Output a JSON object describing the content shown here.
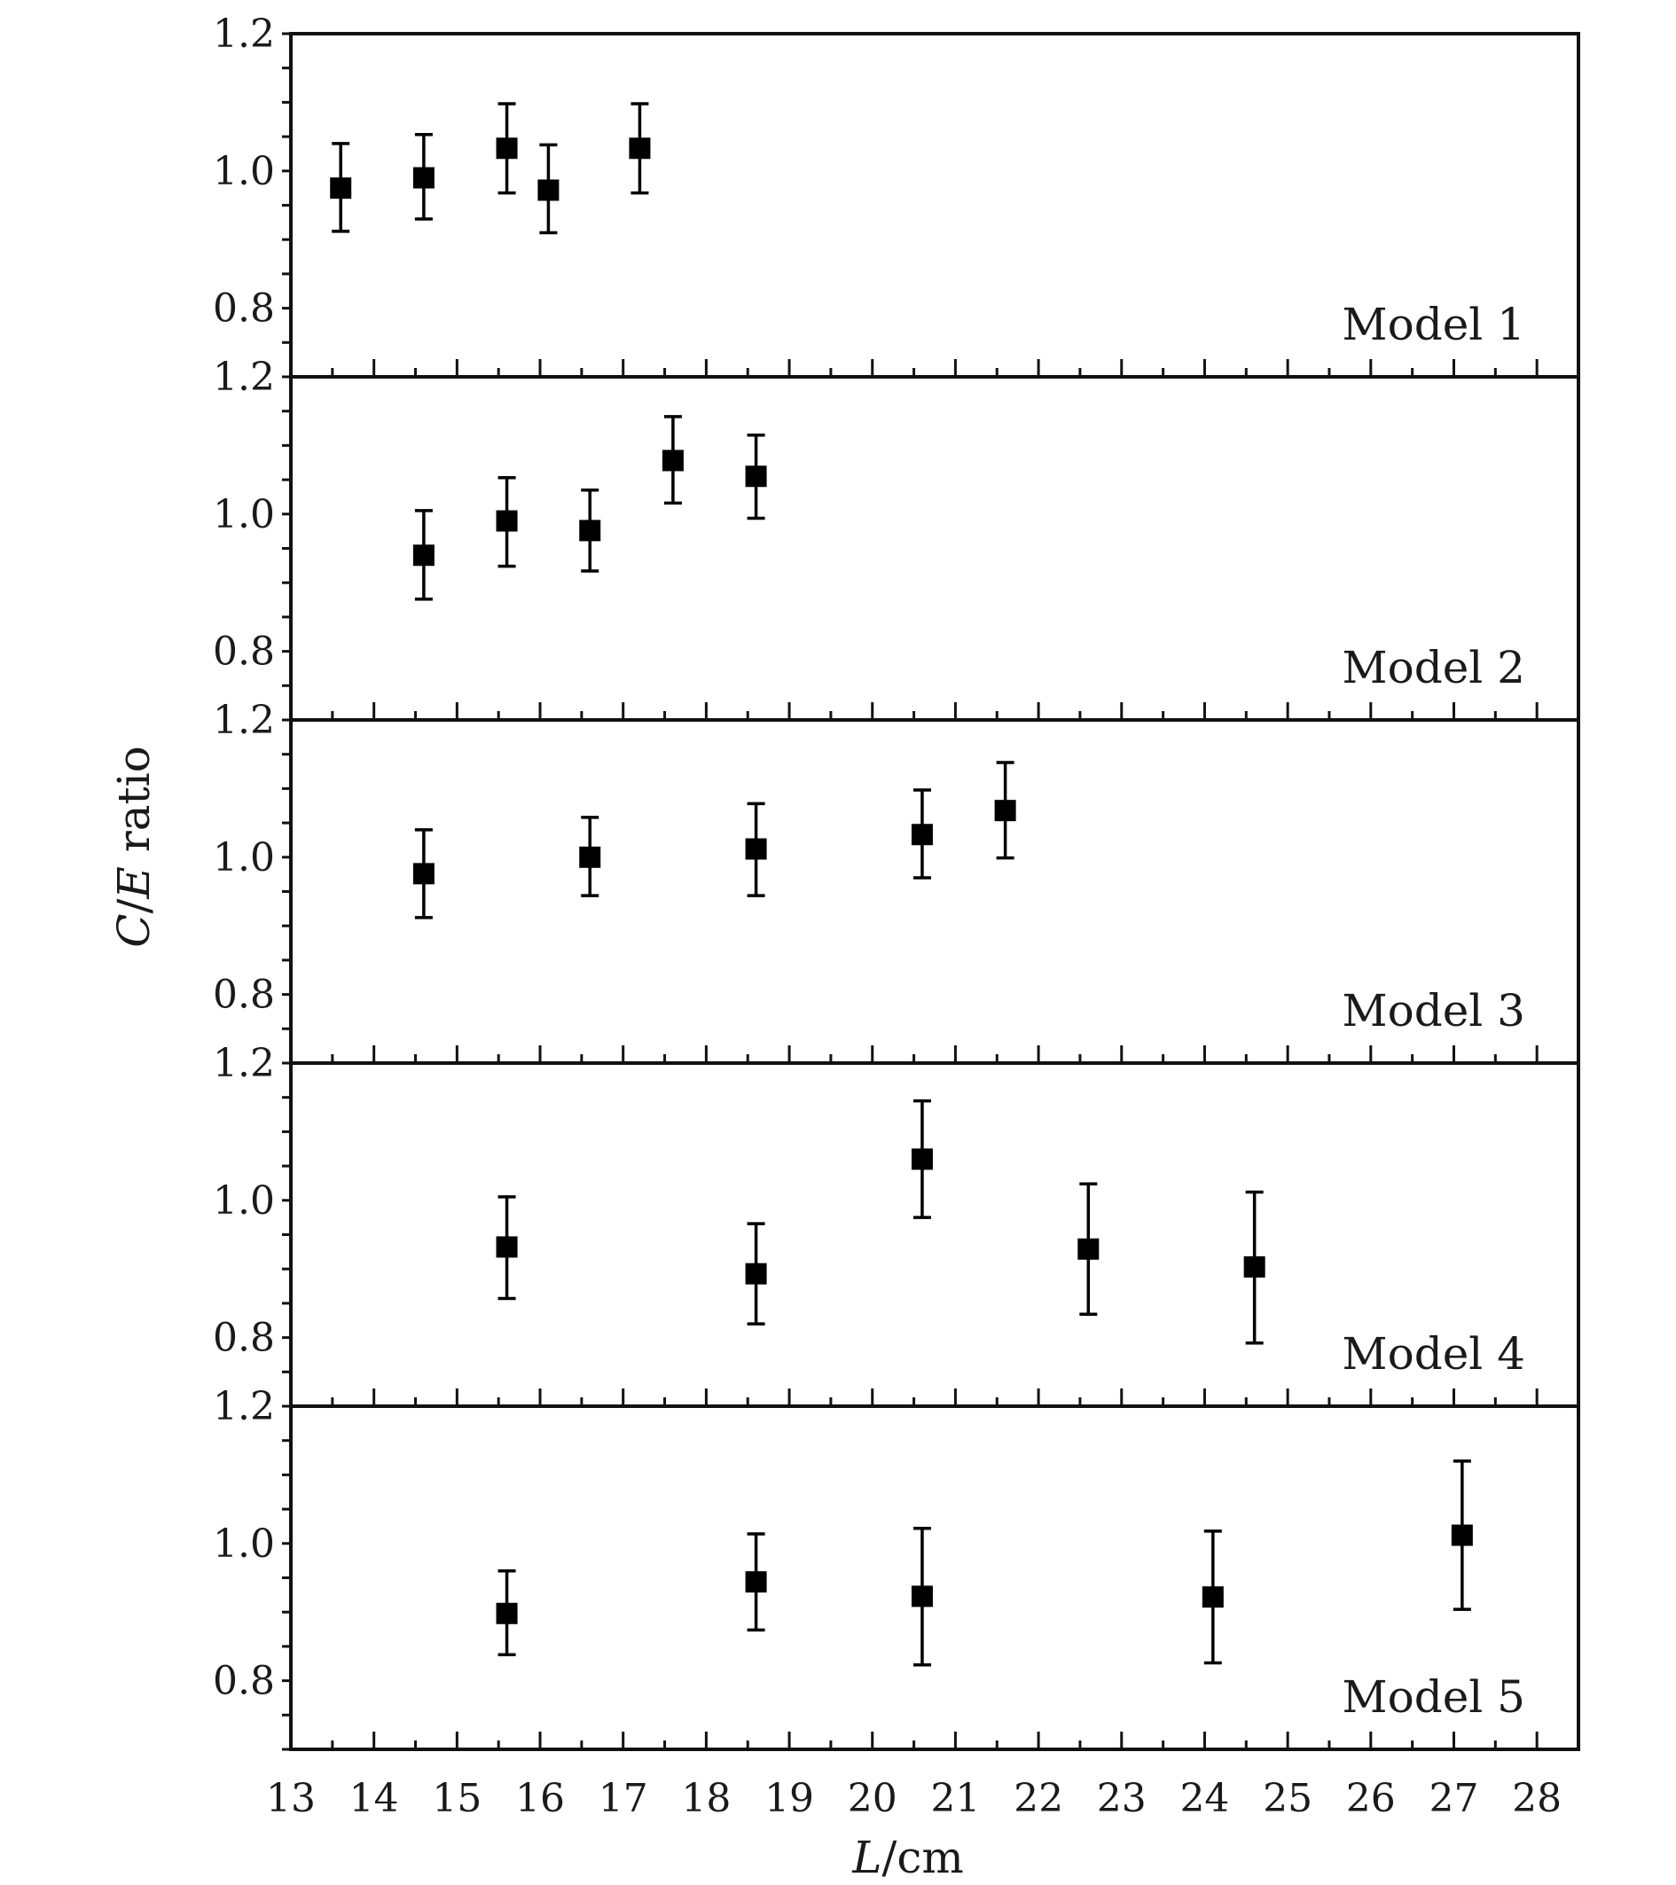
{
  "chart_data": {
    "type": "scatter",
    "subtype": "stacked panels with error bars",
    "xlabel_parts": [
      "L",
      "/cm"
    ],
    "ylabel_parts": [
      "C",
      "/",
      "E",
      " ratio"
    ],
    "xlim": [
      13,
      28.5
    ],
    "xticks": [
      13,
      14,
      15,
      16,
      17,
      18,
      19,
      20,
      21,
      22,
      23,
      24,
      25,
      26,
      27,
      28
    ],
    "ylim": [
      0.7,
      1.2
    ],
    "yticks": [
      "0.8",
      "1.0",
      "1.2"
    ],
    "grid": false,
    "colors": {
      "marker": "#000000",
      "axis": "#111111"
    },
    "panels": [
      {
        "label": "Model 1",
        "points": [
          {
            "x": 13.6,
            "y": 0.975,
            "yerr_low": 0.912,
            "yerr_high": 1.04
          },
          {
            "x": 14.6,
            "y": 0.99,
            "yerr_low": 0.93,
            "yerr_high": 1.053
          },
          {
            "x": 15.6,
            "y": 1.033,
            "yerr_low": 0.968,
            "yerr_high": 1.098
          },
          {
            "x": 16.1,
            "y": 0.972,
            "yerr_low": 0.91,
            "yerr_high": 1.038
          },
          {
            "x": 17.2,
            "y": 1.033,
            "yerr_low": 0.968,
            "yerr_high": 1.098
          }
        ]
      },
      {
        "label": "Model 2",
        "points": [
          {
            "x": 14.6,
            "y": 0.94,
            "yerr_low": 0.876,
            "yerr_high": 1.005
          },
          {
            "x": 15.6,
            "y": 0.99,
            "yerr_low": 0.924,
            "yerr_high": 1.053
          },
          {
            "x": 16.6,
            "y": 0.976,
            "yerr_low": 0.917,
            "yerr_high": 1.035
          },
          {
            "x": 17.6,
            "y": 1.078,
            "yerr_low": 1.016,
            "yerr_high": 1.142
          },
          {
            "x": 18.6,
            "y": 1.055,
            "yerr_low": 0.994,
            "yerr_high": 1.115
          }
        ]
      },
      {
        "label": "Model 3",
        "points": [
          {
            "x": 14.6,
            "y": 0.976,
            "yerr_low": 0.912,
            "yerr_high": 1.04
          },
          {
            "x": 16.6,
            "y": 1.0,
            "yerr_low": 0.944,
            "yerr_high": 1.058
          },
          {
            "x": 18.6,
            "y": 1.012,
            "yerr_low": 0.944,
            "yerr_high": 1.078
          },
          {
            "x": 20.6,
            "y": 1.033,
            "yerr_low": 0.97,
            "yerr_high": 1.098
          },
          {
            "x": 21.6,
            "y": 1.068,
            "yerr_low": 0.999,
            "yerr_high": 1.138
          }
        ]
      },
      {
        "label": "Model 4",
        "points": [
          {
            "x": 15.6,
            "y": 0.932,
            "yerr_low": 0.857,
            "yerr_high": 1.005
          },
          {
            "x": 18.6,
            "y": 0.893,
            "yerr_low": 0.82,
            "yerr_high": 0.966
          },
          {
            "x": 20.6,
            "y": 1.06,
            "yerr_low": 0.975,
            "yerr_high": 1.145
          },
          {
            "x": 22.6,
            "y": 0.929,
            "yerr_low": 0.834,
            "yerr_high": 1.024
          },
          {
            "x": 24.6,
            "y": 0.903,
            "yerr_low": 0.792,
            "yerr_high": 1.012
          }
        ]
      },
      {
        "label": "Model 5",
        "points": [
          {
            "x": 15.6,
            "y": 0.898,
            "yerr_low": 0.838,
            "yerr_high": 0.96
          },
          {
            "x": 18.6,
            "y": 0.944,
            "yerr_low": 0.874,
            "yerr_high": 1.014
          },
          {
            "x": 20.6,
            "y": 0.923,
            "yerr_low": 0.823,
            "yerr_high": 1.022
          },
          {
            "x": 24.1,
            "y": 0.922,
            "yerr_low": 0.826,
            "yerr_high": 1.018
          },
          {
            "x": 27.1,
            "y": 1.012,
            "yerr_low": 0.904,
            "yerr_high": 1.12
          }
        ]
      }
    ]
  }
}
